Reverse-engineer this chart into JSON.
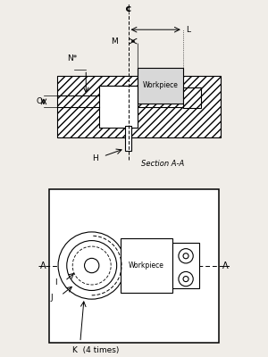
{
  "bg_color": "#f0ede8",
  "line_color": "#000000",
  "top_diagram": {
    "labels": {
      "CL": "¢",
      "L": "L",
      "M": "M",
      "N": "N*",
      "O": "O",
      "H": "H",
      "section": "Section A-A",
      "workpiece": "Workpiece"
    }
  },
  "bottom_diagram": {
    "labels": {
      "A_left": "A",
      "A_right": "A",
      "I": "I",
      "J": "J",
      "K": "K  (4 times)",
      "workpiece": "Workpiece"
    }
  }
}
